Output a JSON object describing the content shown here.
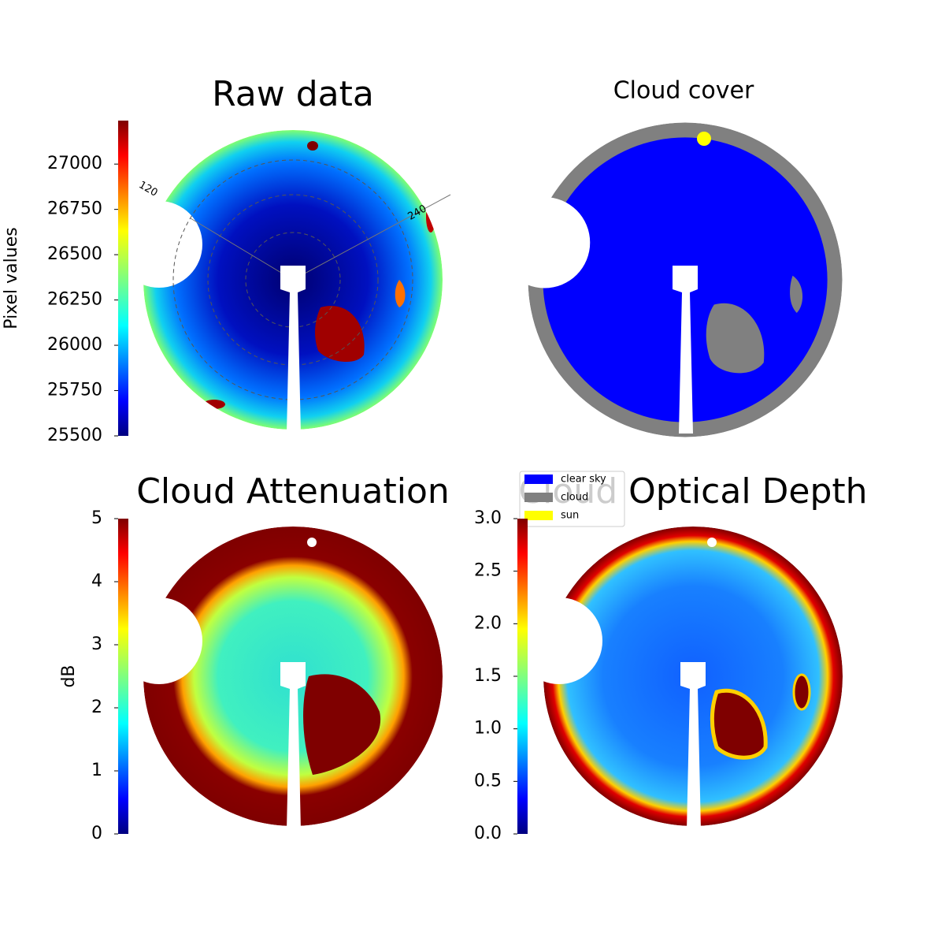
{
  "chart_data": [
    {
      "type": "image",
      "title": "Raw data",
      "colorbar": {
        "label": "Pixel values",
        "colormap": "jet",
        "lim": [
          25500,
          27240
        ],
        "ticks": [
          25500,
          25750,
          26000,
          26250,
          26500,
          26750,
          27000
        ]
      },
      "annotations": [
        "120",
        "240"
      ]
    },
    {
      "type": "image",
      "title": "Cloud cover",
      "legend": [
        {
          "name": "clear sky",
          "color": "#0000ff"
        },
        {
          "name": "cloud",
          "color": "#808080"
        },
        {
          "name": "sun",
          "color": "#ffff00"
        }
      ]
    },
    {
      "type": "image",
      "title": "Cloud Attenuation",
      "colorbar": {
        "label": "dB",
        "colormap": "jet",
        "lim": [
          0,
          5
        ],
        "ticks": [
          0,
          1,
          2,
          3,
          4,
          5
        ]
      }
    },
    {
      "type": "image",
      "title": "Cloud Optical Depth",
      "colorbar": {
        "colormap": "jet",
        "lim": [
          0,
          3
        ],
        "ticks": [
          {
            "value": 0,
            "label": "0.0"
          },
          0.5,
          {
            "value": 1,
            "label": "1.0"
          },
          1.5,
          {
            "value": 2,
            "label": "2.0"
          },
          2.5,
          {
            "value": 3,
            "label": "3.0"
          }
        ]
      }
    }
  ]
}
